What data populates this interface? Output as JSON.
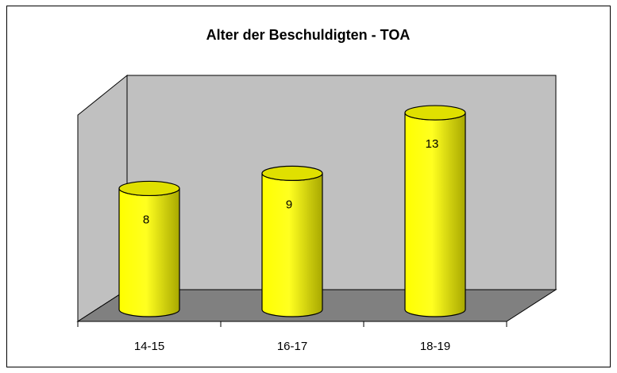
{
  "chart_data": {
    "type": "bar",
    "title": "Alter der Beschuldigten - TOA",
    "categories": [
      "14-15",
      "16-17",
      "18-19"
    ],
    "values": [
      8,
      9,
      13
    ],
    "color": "#ffff00",
    "ylim": [
      0,
      14
    ]
  }
}
